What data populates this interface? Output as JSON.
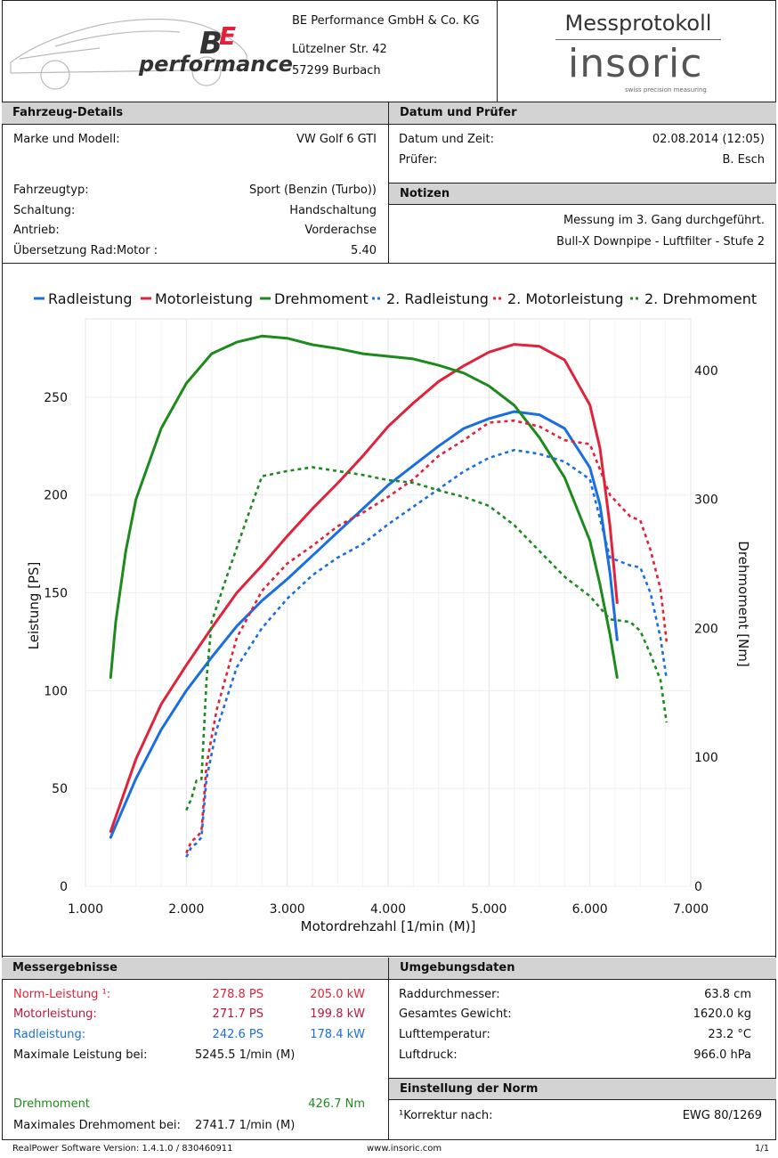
{
  "header": {
    "logo_text": "performance",
    "company": "BE Performance GmbH & Co. KG",
    "street": "Lützelner Str. 42",
    "city": "57299 Burbach",
    "doc_title": "Messprotokoll",
    "brand": "insoric",
    "brand_sub": "swiss precision measuring"
  },
  "vehicle": {
    "title": "Fahrzeug-Details",
    "model_label": "Marke und Modell:",
    "model_value": "VW Golf 6 GTI",
    "type_label": "Fahrzeugtyp:",
    "type_value": "Sport (Benzin (Turbo))",
    "shift_label": "Schaltung:",
    "shift_value": "Handschaltung",
    "drive_label": "Antrieb:",
    "drive_value": "Vorderachse",
    "ratio_label": "Übersetzung Rad:Motor :",
    "ratio_value": "5.40"
  },
  "date_tester": {
    "title": "Datum und Prüfer",
    "date_label": "Datum und Zeit:",
    "date_value": "02.08.2014 (12:05)",
    "tester_label": "Prüfer:",
    "tester_value": "B. Esch"
  },
  "notes": {
    "title": "Notizen",
    "line1": "Messung im 3. Gang durchgeführt.",
    "line2": "Bull-X Downpipe - Luftfilter - Stufe 2"
  },
  "chart_data": {
    "type": "line",
    "xlabel": "Motordrehzahl [1/min (M)]",
    "ylabel": "Leistung [PS]",
    "y2label": "Drehmoment [Nm]",
    "xlim": [
      1000,
      7000
    ],
    "ylim": [
      0,
      290
    ],
    "y2lim": [
      0,
      440
    ],
    "x_ticks": [
      "1.000",
      "2.000",
      "3.000",
      "4.000",
      "5.000",
      "6.000",
      "7.000"
    ],
    "y_ticks": [
      "0",
      "50",
      "100",
      "150",
      "200",
      "250"
    ],
    "y2_ticks": [
      "0",
      "100",
      "200",
      "300",
      "400"
    ],
    "legend_position": "top",
    "grid": true,
    "series": [
      {
        "name": "Radleistung",
        "color": "#1a6fe0",
        "dashed": false,
        "axis": "left",
        "x": [
          1250,
          1500,
          1750,
          2000,
          2250,
          2500,
          2750,
          3000,
          3250,
          3500,
          3750,
          4000,
          4250,
          4500,
          4750,
          5000,
          5250,
          5500,
          5750,
          6000,
          6100,
          6200,
          6270
        ],
        "y": [
          25,
          55,
          80,
          100,
          117,
          133,
          146,
          157,
          169,
          181,
          193,
          205,
          215,
          225,
          234,
          239,
          242.6,
          241,
          234,
          214,
          195,
          160,
          126
        ]
      },
      {
        "name": "Motorleistung",
        "color": "#e0223a",
        "dashed": false,
        "axis": "left",
        "x": [
          1250,
          1500,
          1750,
          2000,
          2250,
          2500,
          2750,
          3000,
          3250,
          3500,
          3750,
          4000,
          4250,
          4500,
          4750,
          5000,
          5250,
          5500,
          5750,
          6000,
          6100,
          6200,
          6270
        ],
        "y": [
          28,
          65,
          93,
          113,
          132,
          150,
          164,
          179,
          193,
          206,
          220,
          235,
          247,
          258,
          266,
          273,
          277,
          276,
          269,
          246,
          224,
          184,
          145
        ]
      },
      {
        "name": "Drehmoment",
        "color": "#1d8a1d",
        "dashed": false,
        "axis": "right",
        "x": [
          1250,
          1300,
          1400,
          1500,
          1750,
          2000,
          2250,
          2500,
          2750,
          3000,
          3250,
          3500,
          3750,
          4000,
          4250,
          4500,
          4750,
          5000,
          5250,
          5500,
          5750,
          6000,
          6100,
          6200,
          6270
        ],
        "y": [
          162,
          205,
          260,
          300,
          355,
          390,
          413,
          422,
          426.7,
          425,
          420,
          417,
          413,
          411,
          409,
          404,
          398,
          388,
          373,
          348,
          317,
          268,
          234,
          195,
          162
        ]
      },
      {
        "name": "2. Radleistung",
        "color": "#1a6fe0",
        "dashed": true,
        "axis": "left",
        "x": [
          2000,
          2050,
          2100,
          2150,
          2200,
          2300,
          2500,
          2750,
          3000,
          3250,
          3500,
          3750,
          4000,
          4250,
          4500,
          4750,
          5000,
          5250,
          5500,
          5750,
          6000,
          6200,
          6400,
          6500,
          6600,
          6700,
          6760
        ],
        "y": [
          15,
          20,
          22,
          25,
          55,
          80,
          112,
          132,
          147,
          159,
          168,
          175,
          185,
          194,
          203,
          212,
          219,
          223,
          221,
          217,
          208,
          168,
          164,
          163,
          150,
          127,
          106
        ]
      },
      {
        "name": "2. Motorleistung",
        "color": "#e0223a",
        "dashed": true,
        "axis": "left",
        "x": [
          2000,
          2050,
          2100,
          2150,
          2200,
          2300,
          2500,
          2750,
          3000,
          3250,
          3500,
          3750,
          4000,
          4250,
          4500,
          4750,
          5000,
          5250,
          5500,
          5750,
          6000,
          6200,
          6400,
          6500,
          6600,
          6700,
          6760
        ],
        "y": [
          17,
          23,
          25,
          28,
          62,
          90,
          127,
          151,
          165,
          174,
          184,
          191,
          199,
          208,
          220,
          228,
          237,
          238,
          235,
          228,
          226,
          200,
          189,
          187,
          172,
          152,
          125
        ]
      },
      {
        "name": "2. Drehmoment",
        "color": "#1d8a1d",
        "dashed": true,
        "axis": "right",
        "x": [
          2000,
          2050,
          2100,
          2150,
          2200,
          2250,
          2400,
          2600,
          2750,
          3000,
          3250,
          3500,
          3750,
          4000,
          4250,
          4500,
          4750,
          5000,
          5250,
          5500,
          5750,
          6000,
          6200,
          6400,
          6500,
          6600,
          6700,
          6760
        ],
        "y": [
          59,
          68,
          82,
          83,
          160,
          205,
          240,
          285,
          318,
          322,
          325,
          322,
          319,
          315,
          313,
          307,
          302,
          295,
          280,
          260,
          240,
          225,
          207,
          205,
          198,
          180,
          160,
          127
        ]
      }
    ]
  },
  "results": {
    "title": "Messergebnisse",
    "norm_label": "Norm-Leistung ¹:",
    "norm_ps": "278.8 PS",
    "norm_kw": "205.0 kW",
    "motor_label": "Motorleistung:",
    "motor_ps": "271.7 PS",
    "motor_kw": "199.8 kW",
    "wheel_label": "Radleistung:",
    "wheel_ps": "242.6 PS",
    "wheel_kw": "178.4 kW",
    "maxpower_label": "Maximale Leistung bei:",
    "maxpower_value": "5245.5 1/min (M)",
    "torque_label": "Drehmoment",
    "torque_value": "426.7 Nm",
    "maxtorque_label": "Maximales Drehmoment bei:",
    "maxtorque_value": "2741.7 1/min (M)"
  },
  "environment": {
    "title": "Umgebungsdaten",
    "wheel_d_label": "Raddurchmesser:",
    "wheel_d_value": "63.8 cm",
    "weight_label": "Gesamtes Gewicht:",
    "weight_value": "1620.0 kg",
    "air_temp_label": "Lufttemperatur:",
    "air_temp_value": "23.2 °C",
    "air_press_label": "Luftdruck:",
    "air_press_value": "966.0 hPa"
  },
  "norm": {
    "title": "Einstellung der Norm",
    "corr_label": "¹Korrektur nach:",
    "corr_value": "EWG 80/1269"
  },
  "footer": {
    "version": "RealPower Software Version: 1.4.1.0 / 830460911",
    "url": "www.insoric.com",
    "page": "1/1"
  }
}
